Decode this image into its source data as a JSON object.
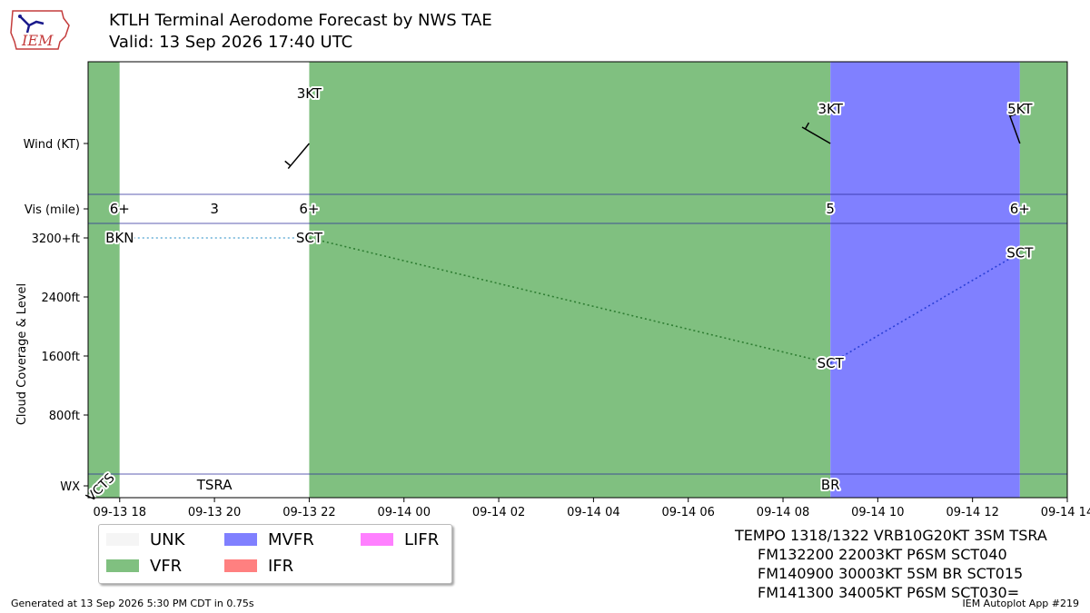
{
  "header": {
    "title": "KTLH Terminal Aerodome Forecast by NWS TAE",
    "subtitle": "Valid: 13 Sep 2026 17:40 UTC",
    "logo_text": "IEM"
  },
  "chart_data": {
    "type": "taf_timeline",
    "x_axis": {
      "start": "09-13 17:20",
      "end": "09-14 14:00",
      "tick_labels": [
        "09-13 18",
        "09-13 20",
        "09-13 22",
        "09-14 00",
        "09-14 02",
        "09-14 04",
        "09-14 06",
        "09-14 08",
        "09-14 10",
        "09-14 12",
        "09-14 14"
      ]
    },
    "y_axis": {
      "label": "Cloud Coverage & Level",
      "row_labels": {
        "wind": "Wind (KT)",
        "vis": "Vis (mile)",
        "wx": "WX"
      },
      "cloud_ticks": [
        "3200+ft",
        "2400ft",
        "1600ft",
        "800ft"
      ],
      "cloud_tick_values_ft": [
        3200,
        2400,
        1600,
        800
      ]
    },
    "category_colors": {
      "UNK": "#f5f5f5",
      "VFR": "#80c080",
      "MVFR": "#8080ff",
      "IFR": "#ff8080",
      "LIFR": "#ff80ff"
    },
    "periods": [
      {
        "start": "09-13 17:20",
        "end": "09-13 18:00",
        "category": "VFR"
      },
      {
        "start": "09-13 18:00",
        "end": "09-13 22:00",
        "category": "UNK"
      },
      {
        "start": "09-13 22:00",
        "end": "09-14 09:00",
        "category": "VFR"
      },
      {
        "start": "09-14 09:00",
        "end": "09-14 13:00",
        "category": "MVFR"
      },
      {
        "start": "09-14 13:00",
        "end": "09-14 14:00",
        "category": "VFR"
      }
    ],
    "wind": [
      {
        "time": "09-13 22:00",
        "label": "3KT",
        "dir_deg": 220
      },
      {
        "time": "09-14 09:00",
        "label": "3KT",
        "dir_deg": 300
      },
      {
        "time": "09-14 13:00",
        "label": "5KT",
        "dir_deg": 340
      }
    ],
    "visibility": [
      {
        "time": "09-13 18:00",
        "label": "6+"
      },
      {
        "time": "09-13 20:00",
        "label": "3"
      },
      {
        "time": "09-13 22:00",
        "label": "6+"
      },
      {
        "time": "09-14 09:00",
        "label": "5"
      },
      {
        "time": "09-14 13:00",
        "label": "6+"
      }
    ],
    "clouds": [
      {
        "time": "09-13 18:00",
        "cover": "BKN",
        "level_ft": 3200
      },
      {
        "time": "09-13 22:00",
        "cover": "SCT",
        "level_ft": 3200
      },
      {
        "time": "09-14 09:00",
        "cover": "SCT",
        "level_ft": 1500
      },
      {
        "time": "09-14 13:00",
        "cover": "SCT",
        "level_ft": 3000
      }
    ],
    "cloud_line_colors": [
      "#6ab0d8",
      "#2e7d32",
      "#2a3fd6"
    ],
    "weather": [
      {
        "time": "09-13 18:00",
        "label": "VCTS",
        "rotated": true
      },
      {
        "time": "09-13 20:00",
        "label": "TSRA",
        "rotated": false
      },
      {
        "time": "09-14 09:00",
        "label": "BR",
        "rotated": false
      }
    ]
  },
  "legend": [
    {
      "name": "UNK",
      "color": "#f5f5f5"
    },
    {
      "name": "VFR",
      "color": "#80c080"
    },
    {
      "name": "MVFR",
      "color": "#8080ff"
    },
    {
      "name": "IFR",
      "color": "#ff8080"
    },
    {
      "name": "LIFR",
      "color": "#ff80ff"
    }
  ],
  "taf_text": [
    "TEMPO 1318/1322 VRB10G20KT 3SM TSRA",
    "FM132200 22003KT P6SM SCT040",
    "FM140900 30003KT 5SM BR SCT015",
    "FM141300 34005KT P6SM SCT030="
  ],
  "footer": {
    "generated": "Generated at 13 Sep 2026 5:30 PM CDT in 0.75s",
    "app": "IEM Autoplot App #219"
  }
}
